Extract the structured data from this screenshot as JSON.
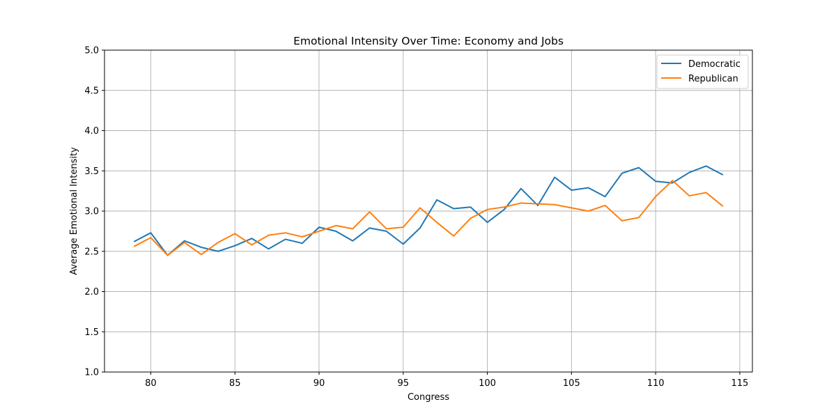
{
  "chart_data": {
    "type": "line",
    "title": "Emotional Intensity Over Time: Economy and Jobs",
    "xlabel": "Congress",
    "ylabel": "Average Emotional Intensity",
    "xlim": [
      77.25,
      115.75
    ],
    "ylim": [
      1.0,
      5.0
    ],
    "xticks": [
      80,
      85,
      90,
      95,
      100,
      105,
      110,
      115
    ],
    "xtick_labels": [
      "80",
      "85",
      "90",
      "95",
      "100",
      "105",
      "110",
      "115"
    ],
    "yticks": [
      1.0,
      1.5,
      2.0,
      2.5,
      3.0,
      3.5,
      4.0,
      4.5,
      5.0
    ],
    "ytick_labels": [
      "1.0",
      "1.5",
      "2.0",
      "2.5",
      "3.0",
      "3.5",
      "4.0",
      "4.5",
      "5.0"
    ],
    "grid": true,
    "legend_position": "top-right",
    "x": [
      79,
      80,
      81,
      82,
      83,
      84,
      85,
      86,
      87,
      88,
      89,
      90,
      91,
      92,
      93,
      94,
      95,
      96,
      97,
      98,
      99,
      100,
      101,
      102,
      103,
      104,
      105,
      106,
      107,
      108,
      109,
      110,
      111,
      112,
      113,
      114
    ],
    "series": [
      {
        "name": "Democratic",
        "color": "#1f77b4",
        "values": [
          2.62,
          2.73,
          2.45,
          2.63,
          2.55,
          2.5,
          2.57,
          2.66,
          2.53,
          2.65,
          2.6,
          2.8,
          2.75,
          2.63,
          2.79,
          2.75,
          2.59,
          2.79,
          3.14,
          3.03,
          3.05,
          2.86,
          3.02,
          3.28,
          3.07,
          3.42,
          3.26,
          3.29,
          3.18,
          3.47,
          3.54,
          3.37,
          3.35,
          3.48,
          3.56,
          3.45
        ]
      },
      {
        "name": "Republican",
        "color": "#ff7f0e",
        "values": [
          2.56,
          2.67,
          2.45,
          2.61,
          2.46,
          2.61,
          2.72,
          2.58,
          2.7,
          2.73,
          2.68,
          2.75,
          2.82,
          2.78,
          2.99,
          2.78,
          2.8,
          3.04,
          2.86,
          2.69,
          2.91,
          3.02,
          3.05,
          3.1,
          3.09,
          3.08,
          3.04,
          3.0,
          3.07,
          2.88,
          2.92,
          3.18,
          3.38,
          3.19,
          3.23,
          3.06
        ]
      }
    ]
  }
}
